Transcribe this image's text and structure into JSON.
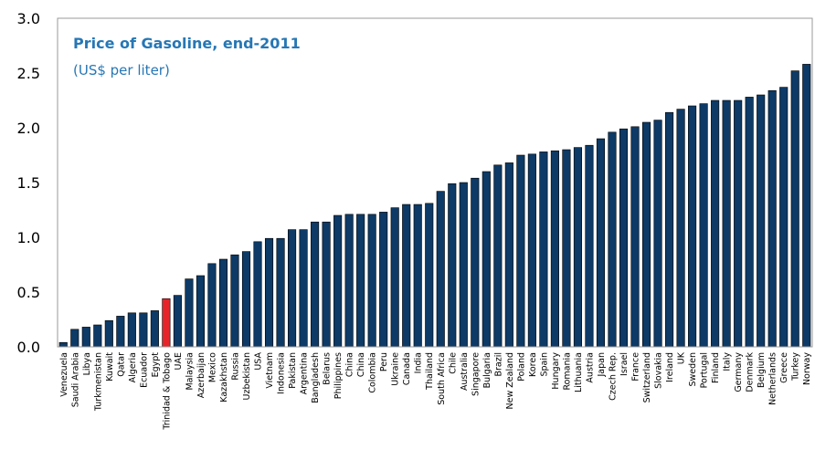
{
  "chart_data": {
    "type": "bar",
    "title": "Price of Gasoline,  end-2011",
    "subtitle": "(US$ per liter)",
    "ylim": [
      0,
      3.0
    ],
    "yticks": [
      "0.0",
      "0.5",
      "1.0",
      "1.5",
      "2.0",
      "2.5",
      "3.0"
    ],
    "grid": false,
    "highlight_category": "Trinidad & Tobago",
    "colors": {
      "bar": "#0d3a66",
      "highlight": "#e8242b",
      "title": "#2677b5"
    },
    "categories": [
      "Venezuela",
      "Saudi Arabia",
      "Libya",
      "Turkmenistan",
      "Kuwait",
      "Qatar",
      "Algeria",
      "Ecuador",
      "Egypt",
      "Trinidad & Tobago",
      "UAE",
      "Malaysia",
      "Azerbaijan",
      "Mexico",
      "Kazakhstan",
      "Russia",
      "Uzbekistan",
      "USA",
      "Vietnam",
      "Indonesia",
      "Pakistan",
      "Argentina",
      "Bangladesh",
      "Belarus",
      "Philippines",
      "China",
      "China",
      "Colombia",
      "Peru",
      "Ukraine",
      "Canada",
      "India",
      "Thailand",
      "South Africa",
      "Chile",
      "Australia",
      "Singapore",
      "Bulgaria",
      "Brazil",
      "New Zealand",
      "Poland",
      "Korea",
      "Spain",
      "Hungary",
      "Romania",
      "Lithuania",
      "Austria",
      "Japan",
      "Czech Rep.",
      "Israel",
      "France",
      "Switzerland",
      "Slovakia",
      "Ireland",
      "UK",
      "Sweden",
      "Portugal",
      "Finland",
      "Italy",
      "Germany",
      "Denmark",
      "Belgium",
      "Netherlands",
      "Greece",
      "Turkey",
      "Norway"
    ],
    "values": [
      0.04,
      0.16,
      0.18,
      0.2,
      0.24,
      0.28,
      0.31,
      0.31,
      0.33,
      0.44,
      0.47,
      0.62,
      0.65,
      0.76,
      0.8,
      0.84,
      0.87,
      0.96,
      0.99,
      0.99,
      1.07,
      1.07,
      1.14,
      1.14,
      1.2,
      1.21,
      1.21,
      1.21,
      1.23,
      1.27,
      1.3,
      1.3,
      1.31,
      1.42,
      1.49,
      1.5,
      1.54,
      1.6,
      1.66,
      1.68,
      1.75,
      1.76,
      1.78,
      1.79,
      1.8,
      1.82,
      1.84,
      1.9,
      1.96,
      1.99,
      2.01,
      2.05,
      2.07,
      2.14,
      2.17,
      2.2,
      2.22,
      2.25,
      2.25,
      2.25,
      2.28,
      2.3,
      2.34,
      2.37,
      2.52,
      2.58
    ]
  }
}
